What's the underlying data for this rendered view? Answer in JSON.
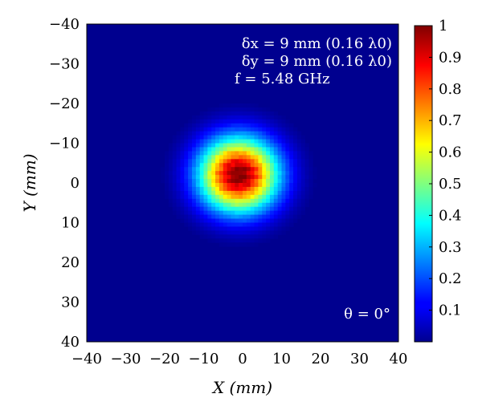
{
  "chart_data": {
    "type": "heatmap",
    "title": "",
    "xlabel": "X (mm)",
    "ylabel": "Y (mm)",
    "xlim": [
      -40,
      40
    ],
    "ylim": [
      -40,
      40
    ],
    "y_axis_inverted": true,
    "x_ticks": [
      "−40",
      "−30",
      "−20",
      "−10",
      "0",
      "10",
      "20",
      "30",
      "40"
    ],
    "y_ticks": [
      "−40",
      "−30",
      "−20",
      "−10",
      "0",
      "10",
      "20",
      "30",
      "40"
    ],
    "colorbar": {
      "range": [
        0,
        1
      ],
      "ticks": [
        "0.1",
        "0.2",
        "0.3",
        "0.4",
        "0.5",
        "0.6",
        "0.7",
        "0.8",
        "0.9",
        "1"
      ],
      "colormap": "jet"
    },
    "annotations": {
      "delta_x": "δx = 9 mm (0.16 λ0)",
      "delta_y": "δy = 9 mm (0.16 λ0)",
      "freq": "f = 5.48 GHz",
      "theta": "θ = 0°"
    },
    "peak": {
      "x": -1,
      "y": -2,
      "value": 1.0
    },
    "spot_width_x_mm": 9,
    "spot_width_y_mm": 9,
    "grid": false,
    "colors": {
      "background": "#00008f",
      "axis": "#000000",
      "annotation": "#ffffff"
    }
  }
}
